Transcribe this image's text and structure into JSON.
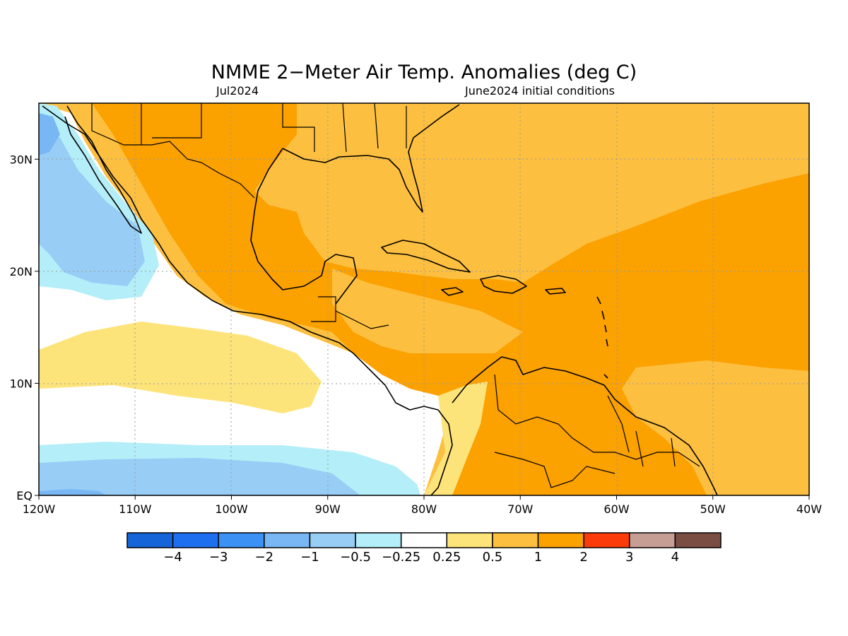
{
  "title": "NMME 2−Meter Air Temp. Anomalies (deg C)",
  "valid_label": "Jul2024",
  "init_label": "June2024 initial conditions",
  "map": {
    "x_ticks": [
      "120W",
      "110W",
      "100W",
      "90W",
      "80W",
      "70W",
      "60W",
      "50W",
      "40W"
    ],
    "y_ticks": [
      "EQ",
      "10N",
      "20N",
      "30N"
    ],
    "lon_range": [
      -120,
      -40
    ],
    "lat_range": [
      0,
      35
    ],
    "colors": {
      "lt_neg4": "#1565d8",
      "neg4_neg3": "#1e6ff0",
      "neg3_neg2": "#3c91f4",
      "neg2_neg1": "#78b7f4",
      "neg1_neg05": "#98cdf6",
      "neg05_neg025": "#b4eef8",
      "neutral": "#ffffff",
      "p025_p05": "#fde47a",
      "p05_p1": "#fdbf3f",
      "p1_p2": "#fba100",
      "p2_p3": "#fb3c0a",
      "p3_p4": "#c69e94",
      "gt_p4": "#7a4e42"
    }
  },
  "colorbar": {
    "labels": [
      "−4",
      "−3",
      "−2",
      "−1",
      "−0.5",
      "−0.25",
      "0.25",
      "0.5",
      "1",
      "2",
      "3",
      "4"
    ],
    "colors": [
      "#1565d8",
      "#1e6ff0",
      "#3c91f4",
      "#78b7f4",
      "#98cdf6",
      "#b4eef8",
      "#ffffff",
      "#fde47a",
      "#fdbf3f",
      "#fba100",
      "#fb3c0a",
      "#c69e94",
      "#7a4e42"
    ]
  }
}
